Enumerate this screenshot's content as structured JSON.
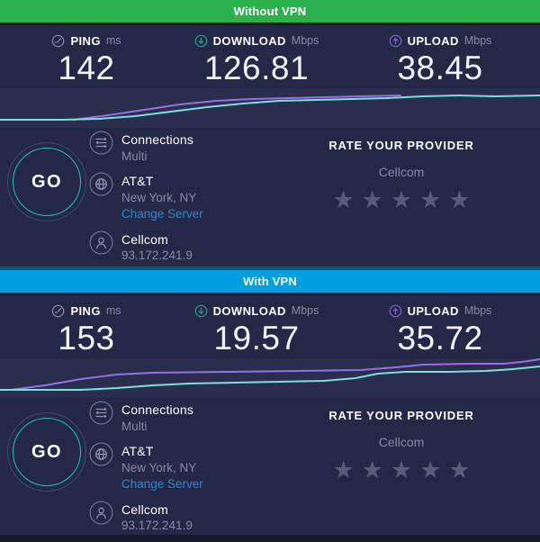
{
  "colors": {
    "background": "#242847",
    "banner_green": "#2cb14f",
    "banner_blue": "#019fdf",
    "download_accent": "#0fae8d",
    "upload_accent": "#8a5ae0",
    "download_line": "#7ddfdc",
    "upload_line": "#9471e5",
    "go_ring": "#2abfae",
    "link_blue": "#2f86cc",
    "star_gray": "#565c77"
  },
  "icons": {
    "star_glyph": "★"
  },
  "sections": [
    {
      "banner": {
        "label": "Without VPN"
      },
      "stats": [
        {
          "label": "PING",
          "unit": "ms",
          "value": "142",
          "icon": "gauge-icon"
        },
        {
          "label": "DOWNLOAD",
          "unit": "Mbps",
          "value": "126.81",
          "icon": "download-arrow-icon"
        },
        {
          "label": "UPLOAD",
          "unit": "Mbps",
          "value": "38.45",
          "icon": "upload-arrow-icon"
        }
      ],
      "graph": {
        "download": [
          [
            0,
            35
          ],
          [
            70,
            35
          ],
          [
            110,
            34
          ],
          [
            150,
            31
          ],
          [
            190,
            26
          ],
          [
            230,
            21
          ],
          [
            270,
            17
          ],
          [
            310,
            14
          ],
          [
            350,
            13
          ],
          [
            390,
            12
          ],
          [
            430,
            11
          ],
          [
            470,
            9
          ],
          [
            510,
            8
          ],
          [
            550,
            9
          ],
          [
            600,
            8
          ]
        ],
        "upload": [
          [
            82,
            35
          ],
          [
            120,
            30
          ],
          [
            160,
            24
          ],
          [
            200,
            18
          ],
          [
            240,
            14
          ],
          [
            280,
            12
          ],
          [
            320,
            11
          ],
          [
            360,
            10
          ],
          [
            400,
            9
          ],
          [
            445,
            8
          ]
        ]
      },
      "go_label": "GO",
      "connection_info": {
        "connections_label": "Connections",
        "connections_value": "Multi",
        "isp_name": "AT&T",
        "server_location": "New York, NY",
        "change_server_label": "Change Server",
        "provider_name": "Cellcom",
        "ip_address": "93.172.241.9"
      },
      "rate_provider": {
        "title": "RATE YOUR PROVIDER",
        "provider": "Cellcom",
        "stars": 5
      }
    },
    {
      "banner": {
        "label": "With VPN"
      },
      "stats": [
        {
          "label": "PING",
          "unit": "ms",
          "value": "153",
          "icon": "gauge-icon"
        },
        {
          "label": "DOWNLOAD",
          "unit": "Mbps",
          "value": "19.57",
          "icon": "download-arrow-icon"
        },
        {
          "label": "UPLOAD",
          "unit": "Mbps",
          "value": "35.72",
          "icon": "upload-arrow-icon"
        }
      ],
      "graph": {
        "download": [
          [
            0,
            35
          ],
          [
            90,
            35
          ],
          [
            130,
            33
          ],
          [
            170,
            30
          ],
          [
            210,
            28
          ],
          [
            260,
            27
          ],
          [
            310,
            26
          ],
          [
            360,
            25
          ],
          [
            395,
            22
          ],
          [
            420,
            17
          ],
          [
            450,
            15
          ],
          [
            500,
            15
          ],
          [
            540,
            14
          ],
          [
            570,
            12
          ],
          [
            600,
            9
          ]
        ],
        "upload": [
          [
            12,
            35
          ],
          [
            50,
            30
          ],
          [
            90,
            23
          ],
          [
            130,
            18
          ],
          [
            170,
            16
          ],
          [
            250,
            15
          ],
          [
            330,
            14
          ],
          [
            400,
            13
          ],
          [
            440,
            10
          ],
          [
            470,
            7
          ],
          [
            520,
            6
          ],
          [
            560,
            6
          ],
          [
            580,
            4
          ],
          [
            600,
            1
          ]
        ]
      },
      "go_label": "GO",
      "connection_info": {
        "connections_label": "Connections",
        "connections_value": "Multi",
        "isp_name": "AT&T",
        "server_location": "New York, NY",
        "change_server_label": "Change Server",
        "provider_name": "Cellcom",
        "ip_address": "93.172.241.9"
      },
      "rate_provider": {
        "title": "RATE YOUR PROVIDER",
        "provider": "Cellcom",
        "stars": 5
      }
    }
  ]
}
